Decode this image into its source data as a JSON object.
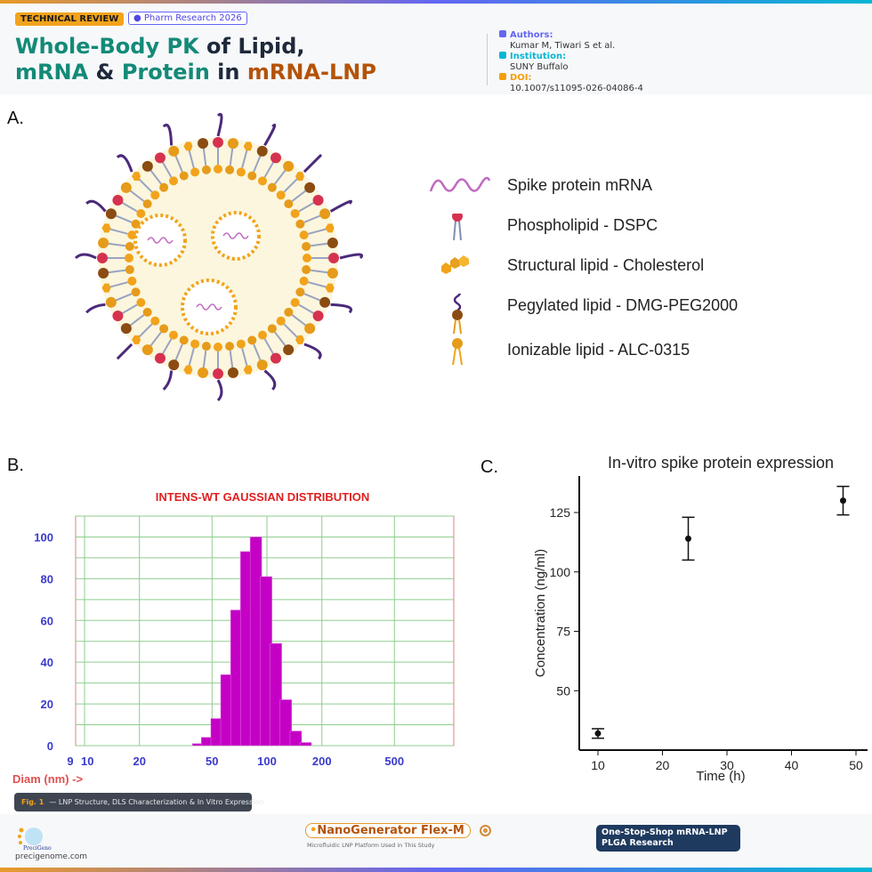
{
  "header": {
    "badge": "TECHNICAL REVIEW",
    "journal": "Pharm Research 2026",
    "title_parts": [
      "Whole-Body PK",
      "of Lipid,",
      "mRNA",
      "&",
      "Protein",
      "in",
      "mRNA-LNP"
    ],
    "meta": [
      {
        "key": "Authors:",
        "value": "Kumar M, Tiwari S et al.",
        "color": "#6366f1"
      },
      {
        "key": "Institution:",
        "value": "SUNY Buffalo",
        "color": "#06b6d4"
      },
      {
        "key": "DOI:",
        "value": "10.1007/s11095-026-04086-4",
        "color": "#f59e0b"
      }
    ]
  },
  "panels": {
    "a": "A.",
    "b": "B.",
    "c": "C."
  },
  "legend": [
    "Spike protein mRNA",
    "Phospholipid - DSPC",
    "Structural lipid - Cholesterol",
    "Pegylated lipid - DMG-PEG2000",
    "Ionizable lipid - ALC-0315"
  ],
  "colors": {
    "mrna": "#c06ac0",
    "peg": "#4b2a7a",
    "phospholipid": "#d6324f",
    "cholesterol": "#f2a31b",
    "ionizable": "#e69b1a",
    "pegHead": "#8b4c12",
    "core": "#fbf6dd"
  },
  "caption": {
    "fig": "Fig. 1",
    "text": "— LNP Structure, DLS Characterization & In Vitro Expression"
  },
  "chart_data": [
    {
      "type": "bar",
      "title": "INTENS-WT GAUSSIAN DISTRIBUTION",
      "xlabel": "Diam (nm) ->",
      "x_scale": "log",
      "xlim": [
        9,
        800
      ],
      "ylim": [
        0,
        110
      ],
      "grid": true,
      "xticks": [
        "9",
        "10",
        "20",
        "50",
        "100",
        "200",
        "500"
      ],
      "yticks": [
        "0",
        "20",
        "40",
        "60",
        "80",
        "100"
      ],
      "x": [
        42,
        47,
        53,
        60,
        68,
        77,
        87,
        99,
        112,
        127,
        144,
        163
      ],
      "values": [
        1,
        4,
        13,
        34,
        65,
        93,
        100,
        81,
        49,
        22,
        7,
        1.5
      ]
    },
    {
      "type": "scatter",
      "title": "In-vitro spike protein expression",
      "xlabel": "Time (h)",
      "ylabel": "Concentration (ng/ml)",
      "xlim": [
        7,
        52
      ],
      "ylim": [
        25,
        140
      ],
      "xticks": [
        "10",
        "20",
        "30",
        "40",
        "50"
      ],
      "yticks": [
        "50",
        "75",
        "100",
        "125"
      ],
      "points": [
        {
          "x": 10,
          "y": 32,
          "err": 2
        },
        {
          "x": 24,
          "y": 114,
          "err": 9
        },
        {
          "x": 48,
          "y": 130,
          "err": 6
        }
      ]
    }
  ],
  "footer": {
    "site": "precigenome.com",
    "logo_text": "PreciGenome",
    "product": "NanoGenerator Flex-M",
    "product_sub": "Microfluidic LNP Platform Used in This Study",
    "cta": [
      "One-Stop-Shop mRNA-LNP",
      "PLGA Research"
    ]
  }
}
